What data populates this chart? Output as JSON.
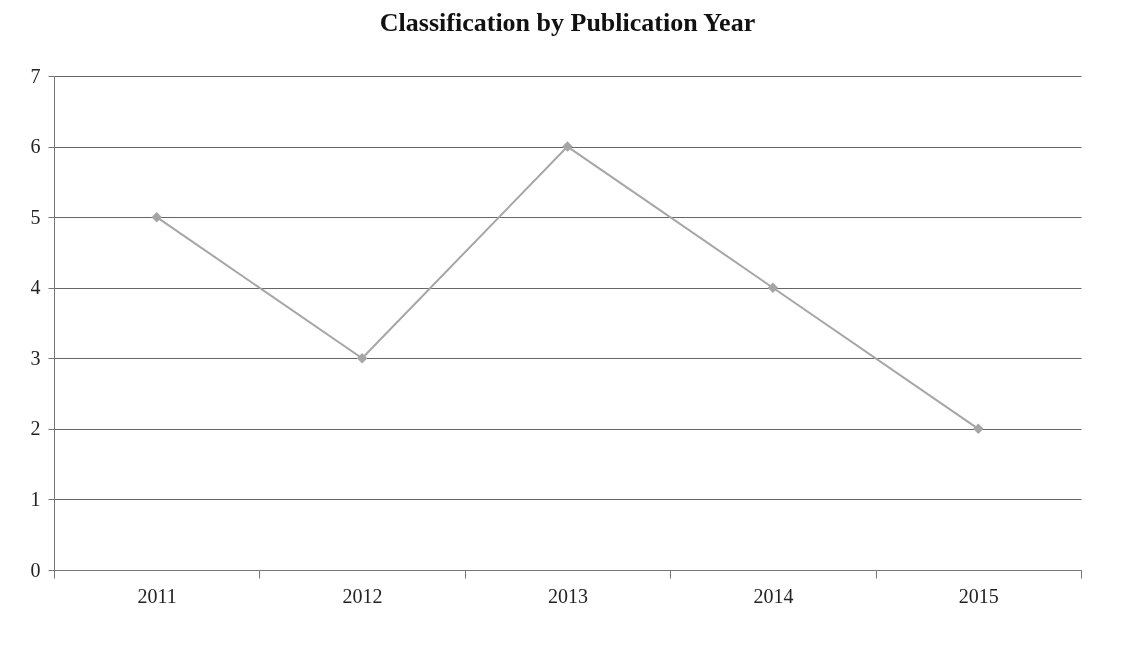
{
  "chart_data": {
    "type": "line",
    "title": "Classification by Publication Year",
    "categories": [
      "2011",
      "2012",
      "2013",
      "2014",
      "2015"
    ],
    "series": [
      {
        "color": "#a6a6a6",
        "values": [
          5,
          3,
          6,
          4,
          2
        ]
      }
    ],
    "ylim": [
      0,
      7
    ],
    "yticks": [
      0,
      1,
      2,
      3,
      4,
      5,
      6,
      7
    ],
    "grid": "y",
    "marker": "diamond",
    "line_style": "solid",
    "legend": false
  }
}
